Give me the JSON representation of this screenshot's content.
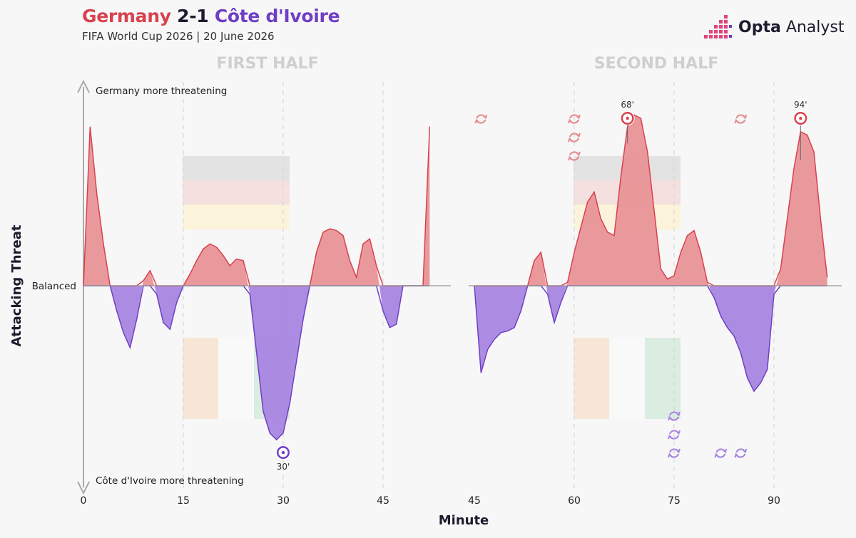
{
  "header": {
    "home_team": "Germany",
    "score": "2-1",
    "away_team": "Côte d'Ivoire",
    "subtitle": "FIFA World Cup 2026 | 20 June 2026",
    "brand_bold": "Opta",
    "brand_light": "Analyst"
  },
  "colors": {
    "home": "#d9414e",
    "home_fill": "#e89496",
    "away": "#6f3fc4",
    "away_fill": "#a886e0",
    "grid": "#d8d8d8",
    "axis": "#aaaaaa",
    "half_title": "#cfcfcf"
  },
  "chart_data": [
    {
      "type": "area",
      "panel": "FIRST HALF",
      "xlabel": "Minute",
      "ylabel": "Attacking Threat",
      "baseline_label": "Balanced",
      "top_label": "Germany more threatening",
      "bottom_label": "Côte d'Ivoire more threatening",
      "xlim": [
        0,
        52
      ],
      "ylim": [
        -1,
        1
      ],
      "xticks": [
        0,
        15,
        30,
        45
      ],
      "grid": true,
      "series": [
        {
          "x": [
            0,
            1,
            2,
            3,
            4,
            5,
            6,
            7,
            8,
            9,
            10,
            11,
            12,
            13,
            14,
            15,
            16,
            17,
            18,
            19,
            20,
            21,
            22,
            23,
            24,
            25,
            26,
            27,
            28,
            29,
            30,
            31,
            32,
            33,
            34,
            35,
            36,
            37,
            38,
            39,
            40,
            41,
            42,
            43,
            44,
            45,
            46,
            47,
            48,
            49,
            50,
            51,
            52
          ],
          "values": [
            0.0,
            0.95,
            0.55,
            0.25,
            0.0,
            -0.15,
            -0.28,
            -0.37,
            -0.2,
            0.03,
            0.09,
            -0.05,
            -0.22,
            -0.26,
            -0.1,
            0.0,
            0.07,
            0.15,
            0.22,
            0.25,
            0.23,
            0.18,
            0.12,
            0.16,
            0.15,
            -0.05,
            -0.4,
            -0.75,
            -0.88,
            -0.92,
            -0.88,
            -0.7,
            -0.45,
            -0.2,
            0.0,
            0.2,
            0.32,
            0.34,
            0.33,
            0.3,
            0.15,
            0.05,
            0.25,
            0.28,
            0.12,
            -0.15,
            -0.25,
            -0.23,
            0.0,
            0.0,
            0.0,
            0.0,
            0.95
          ]
        }
      ],
      "goals": [
        {
          "minute": 30,
          "team": "Côte d'Ivoire",
          "label": "30'",
          "value": -0.99
        }
      ],
      "substitutions": {
        "home": [],
        "away": []
      }
    },
    {
      "type": "area",
      "panel": "SECOND HALF",
      "xlabel": "Minute",
      "ylabel": "Attacking Threat",
      "xlim": [
        45,
        100
      ],
      "ylim": [
        -1,
        1
      ],
      "xticks": [
        45,
        60,
        75,
        90
      ],
      "grid": true,
      "series": [
        {
          "x": [
            45,
            46,
            47,
            48,
            49,
            50,
            51,
            52,
            53,
            54,
            55,
            56,
            57,
            58,
            59,
            60,
            61,
            62,
            63,
            64,
            65,
            66,
            67,
            68,
            69,
            70,
            71,
            72,
            73,
            74,
            75,
            76,
            77,
            78,
            79,
            80,
            81,
            82,
            83,
            84,
            85,
            86,
            87,
            88,
            89,
            90,
            91,
            92,
            93,
            94,
            95,
            96,
            97,
            98
          ],
          "values": [
            0.0,
            -0.52,
            -0.38,
            -0.32,
            -0.28,
            -0.27,
            -0.25,
            -0.15,
            0.0,
            0.15,
            0.2,
            -0.05,
            -0.22,
            -0.1,
            0.02,
            0.2,
            0.35,
            0.5,
            0.56,
            0.4,
            0.32,
            0.3,
            0.65,
            0.95,
            1.02,
            1.0,
            0.8,
            0.45,
            0.1,
            0.04,
            0.06,
            0.2,
            0.3,
            0.33,
            0.2,
            0.02,
            -0.07,
            -0.18,
            -0.25,
            -0.3,
            -0.4,
            -0.55,
            -0.63,
            -0.58,
            -0.5,
            -0.05,
            0.1,
            0.4,
            0.7,
            0.92,
            0.9,
            0.8,
            0.4,
            0.05
          ]
        }
      ],
      "goals": [
        {
          "minute": 68,
          "team": "Germany",
          "label": "68'",
          "value": 1.02
        },
        {
          "minute": 94,
          "team": "Germany",
          "label": "94'",
          "value": 0.92
        }
      ],
      "substitutions": {
        "home": [
          {
            "minute": 46,
            "count": 1
          },
          {
            "minute": 60,
            "count": 3
          },
          {
            "minute": 85,
            "count": 1
          }
        ],
        "away": [
          {
            "minute": 75,
            "count": 3
          },
          {
            "minute": 82,
            "count": 1
          },
          {
            "minute": 85,
            "count": 1
          }
        ]
      }
    }
  ]
}
